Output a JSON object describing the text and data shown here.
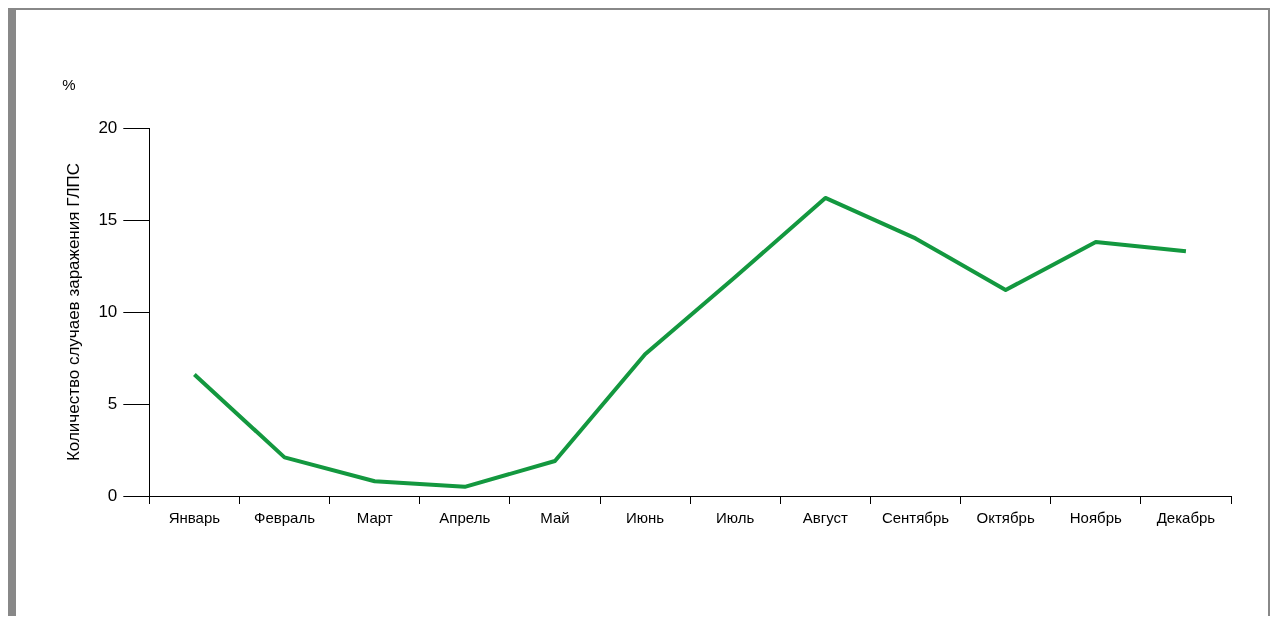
{
  "chart_data": {
    "type": "line",
    "ylabel": "Количество случаев заражения ГЛПС",
    "annotations": [
      "%"
    ],
    "categories": [
      "Январь",
      "Февраль",
      "Март",
      "Апрель",
      "Май",
      "Июнь",
      "Июль",
      "Август",
      "Сентябрь",
      "Октябрь",
      "Ноябрь",
      "Декабрь"
    ],
    "series": [
      {
        "color": "#13983f",
        "values": [
          6.6,
          2.1,
          0.8,
          0.5,
          1.9,
          7.7,
          11.9,
          16.2,
          14.0,
          11.2,
          13.8,
          13.3
        ]
      }
    ],
    "ylim": [
      0,
      20
    ],
    "yticks": [
      0,
      5,
      10,
      15,
      20
    ],
    "grid": false,
    "legend": false,
    "marker": "none",
    "line_style": "solid"
  }
}
